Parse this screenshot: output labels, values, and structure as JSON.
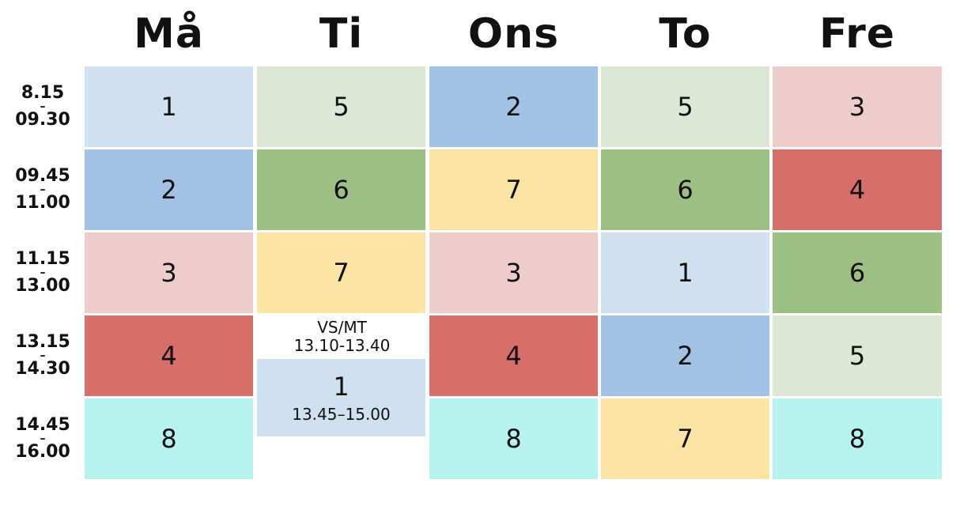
{
  "days": [
    "Må",
    "Ti",
    "Ons",
    "To",
    "Fre"
  ],
  "times": [
    {
      "start": "8.15",
      "end": "09.30"
    },
    {
      "start": "09.45",
      "end": "11.00"
    },
    {
      "start": "11.15",
      "end": "13.00"
    },
    {
      "start": "13.15",
      "end": "14.30"
    },
    {
      "start": "14.45",
      "end": "16.00"
    }
  ],
  "time_separator": "–",
  "colors": {
    "1": "#cfe0f0",
    "2": "#a2c2e4",
    "3": "#edcdcb",
    "4": "#d66e69",
    "5": "#dce7d5",
    "6": "#9cbf83",
    "7": "#fbe3a4",
    "8": "#b6f2ee"
  },
  "schedule": {
    "ma": [
      "1",
      "2",
      "3",
      "4",
      "8"
    ],
    "ti": [
      "5",
      "6",
      "7"
    ],
    "ons": [
      "2",
      "7",
      "3",
      "4",
      "8"
    ],
    "to": [
      "5",
      "6",
      "1",
      "2",
      "7"
    ],
    "fre": [
      "3",
      "4",
      "6",
      "5",
      "8"
    ]
  },
  "ti_note": {
    "line1": "VS/MT",
    "line2": "13.10-13.40"
  },
  "ti_special": {
    "number": "1",
    "time": "13.45–15.00"
  }
}
